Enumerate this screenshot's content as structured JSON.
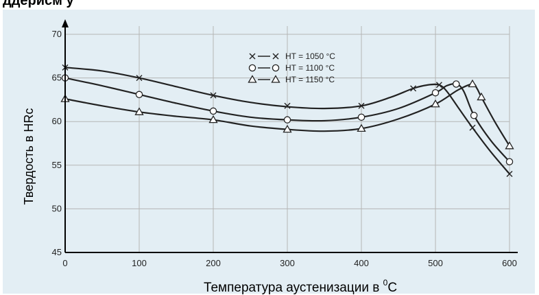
{
  "header": {
    "text": "ддерисм у"
  },
  "chart_data": {
    "type": "line",
    "xlabel": "Температура аустенизации в ",
    "xlabel_sup": "0",
    "xlabel_unit": "C",
    "ylabel": "Твердость в HRc",
    "xlim": [
      0,
      600
    ],
    "ylim": [
      45,
      70
    ],
    "x_ticks": [
      0,
      100,
      200,
      300,
      400,
      500,
      600
    ],
    "y_ticks": [
      45,
      50,
      55,
      60,
      65,
      70
    ],
    "grid": true,
    "legend_position": "top-center",
    "series": [
      {
        "name": "HT = 1050 °C",
        "marker": "x",
        "points": [
          [
            0,
            66.2
          ],
          [
            100,
            65
          ],
          [
            200,
            63
          ],
          [
            300,
            61.8
          ],
          [
            400,
            61.8
          ],
          [
            470,
            63.8
          ],
          [
            505,
            64.2
          ],
          [
            550,
            59.3
          ],
          [
            600,
            54
          ]
        ],
        "curve": [
          [
            0,
            66.2
          ],
          [
            50,
            65.8
          ],
          [
            100,
            65
          ],
          [
            150,
            64
          ],
          [
            200,
            63
          ],
          [
            250,
            62.2
          ],
          [
            300,
            61.7
          ],
          [
            350,
            61.5
          ],
          [
            400,
            61.8
          ],
          [
            440,
            62.8
          ],
          [
            470,
            63.8
          ],
          [
            490,
            64.2
          ],
          [
            505,
            64.2
          ],
          [
            515,
            63.5
          ],
          [
            530,
            61.7
          ],
          [
            550,
            59.3
          ],
          [
            575,
            56.5
          ],
          [
            600,
            54
          ]
        ]
      },
      {
        "name": "HT = 1100 °C",
        "marker": "o",
        "points": [
          [
            0,
            65
          ],
          [
            100,
            63.1
          ],
          [
            200,
            61.2
          ],
          [
            300,
            60.2
          ],
          [
            400,
            60.5
          ],
          [
            500,
            63.3
          ],
          [
            528,
            64.3
          ],
          [
            552,
            60.7
          ],
          [
            600,
            55.4
          ]
        ],
        "curve": [
          [
            0,
            65
          ],
          [
            50,
            64.1
          ],
          [
            100,
            63.1
          ],
          [
            150,
            62.1
          ],
          [
            200,
            61.2
          ],
          [
            250,
            60.5
          ],
          [
            300,
            60.2
          ],
          [
            350,
            60.1
          ],
          [
            400,
            60.5
          ],
          [
            450,
            61.5
          ],
          [
            500,
            63.3
          ],
          [
            515,
            64.1
          ],
          [
            528,
            64.3
          ],
          [
            538,
            63.5
          ],
          [
            552,
            60.7
          ],
          [
            575,
            57.8
          ],
          [
            600,
            55.4
          ]
        ]
      },
      {
        "name": "HT = 1150 °C",
        "marker": "triangle",
        "points": [
          [
            0,
            62.6
          ],
          [
            100,
            61.1
          ],
          [
            200,
            60.2
          ],
          [
            300,
            59.1
          ],
          [
            400,
            59.2
          ],
          [
            500,
            62
          ],
          [
            550,
            64.3
          ],
          [
            562,
            62.8
          ],
          [
            600,
            57.2
          ]
        ],
        "curve": [
          [
            0,
            62.6
          ],
          [
            50,
            61.8
          ],
          [
            100,
            61.1
          ],
          [
            150,
            60.6
          ],
          [
            200,
            60.2
          ],
          [
            250,
            59.5
          ],
          [
            300,
            59.1
          ],
          [
            350,
            58.9
          ],
          [
            400,
            59.2
          ],
          [
            450,
            60.3
          ],
          [
            500,
            62
          ],
          [
            530,
            63.6
          ],
          [
            550,
            64.3
          ],
          [
            556,
            63.8
          ],
          [
            562,
            62.8
          ],
          [
            580,
            60
          ],
          [
            600,
            57.2
          ]
        ]
      }
    ]
  }
}
